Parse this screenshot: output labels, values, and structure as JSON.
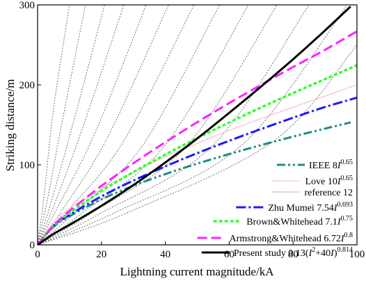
{
  "chart_data": {
    "type": "line",
    "title": "",
    "xlabel": "Lightning current magnitude/kA",
    "ylabel": "Striking distance/m",
    "xlim": [
      0,
      100
    ],
    "ylim": [
      0,
      300
    ],
    "x_ticks": [
      "0",
      "20",
      "40",
      "60",
      "80",
      "100"
    ],
    "y_ticks": [
      "0",
      "100",
      "200",
      "300"
    ],
    "grid": false,
    "legend_position": "bottom-right",
    "series": [
      {
        "name": "IEEE 8I^0.65",
        "legend": {
          "base": "IEEE 8",
          "var": "I",
          "exp": "0.65",
          "tail": ""
        },
        "color": "#1f8a87",
        "style": "dash-dot-dot",
        "x": [
          0,
          5,
          10,
          20,
          30,
          40,
          50,
          60,
          70,
          80,
          90,
          98
        ],
        "y": [
          0,
          22.4,
          35.7,
          56.9,
          73.8,
          88.4,
          101.5,
          113.5,
          124.7,
          135.3,
          145.3,
          153.0
        ]
      },
      {
        "name": "Love 10I^0.65",
        "legend": {
          "base": "Love 10",
          "var": "I",
          "exp": "0.65",
          "tail": ""
        },
        "color": "#f2b8c6",
        "style": "dotted",
        "x": [
          0,
          5,
          10,
          20,
          30,
          40,
          50,
          60,
          70,
          80,
          90,
          100
        ],
        "y": [
          0,
          28.4,
          44.7,
          70.1,
          91.0,
          110.0,
          127.0,
          143.0,
          158.0,
          172.0,
          186.0,
          200.0
        ]
      },
      {
        "name": "Zhu Mumei 7.54I^0.693",
        "legend": {
          "base": "Zhu Mumei 7.54",
          "var": "I",
          "exp": "0.693",
          "tail": ""
        },
        "color": "#1a1aff",
        "style": "dash-dot",
        "x": [
          0,
          5,
          10,
          20,
          30,
          40,
          50,
          60,
          70,
          80,
          90,
          100
        ],
        "y": [
          0,
          23.7,
          37.4,
          60.6,
          80.3,
          98.1,
          114.6,
          130.1,
          144.8,
          158.9,
          172.3,
          184.0
        ]
      },
      {
        "name": "Brown&Whitehead 7.1I^0.75",
        "legend": {
          "base": "Brown&Whitehead 7.1",
          "var": "I",
          "exp": "0.75",
          "tail": ""
        },
        "color": "#33ff33",
        "style": "dotted-thick",
        "x": [
          0,
          5,
          10,
          20,
          30,
          40,
          50,
          60,
          70,
          80,
          90,
          100
        ],
        "y": [
          0,
          23.7,
          39.9,
          67.2,
          91.0,
          112.9,
          133.5,
          153.0,
          171.7,
          189.8,
          207.2,
          224.5
        ]
      },
      {
        "name": "Armstrong&Whitehead 6.72I^0.8",
        "legend": {
          "base": "Armstrong&Whitehead 6.72",
          "var": "I",
          "exp": "0.8",
          "tail": ""
        },
        "color": "#ff22ff",
        "style": "dashed",
        "x": [
          0,
          5,
          10,
          20,
          30,
          40,
          50,
          60,
          70,
          80,
          90,
          100
        ],
        "y": [
          0,
          24.2,
          42.3,
          73.7,
          102.0,
          128.3,
          153.3,
          177.2,
          200.1,
          222.3,
          243.8,
          267.0
        ]
      },
      {
        "name": "Present study 0.13(I^2+40I)^0.814",
        "legend": {
          "base": "Present study 0.13(",
          "var": "I",
          "exp": "2",
          "tail": "+40",
          "var2": "I",
          "close": ")",
          "exp2": "0.814"
        },
        "color": "#000000",
        "style": "solid",
        "x": [
          0,
          5,
          10,
          20,
          30,
          40,
          50,
          60,
          70,
          80,
          90,
          98
        ],
        "y": [
          0,
          13.7,
          25.0,
          48.8,
          74.7,
          103.0,
          133.0,
          165.0,
          198.0,
          232.0,
          268.0,
          298.0
        ]
      }
    ],
    "reference": {
      "name": "reference 12",
      "color": "#707070",
      "style": "fine-dotted",
      "curves": [
        [
          [
            0,
            0
          ],
          [
            2,
            60
          ],
          [
            5,
            170
          ],
          [
            10,
            300
          ]
        ],
        [
          [
            0,
            0
          ],
          [
            3,
            55
          ],
          [
            8,
            160
          ],
          [
            15,
            300
          ]
        ],
        [
          [
            0,
            0
          ],
          [
            4,
            50
          ],
          [
            11,
            150
          ],
          [
            21,
            300
          ]
        ],
        [
          [
            0,
            0
          ],
          [
            5,
            48
          ],
          [
            14,
            145
          ],
          [
            27,
            300
          ]
        ],
        [
          [
            0,
            0
          ],
          [
            6,
            45
          ],
          [
            18,
            140
          ],
          [
            34,
            300
          ]
        ],
        [
          [
            0,
            0
          ],
          [
            8,
            45
          ],
          [
            22,
            135
          ],
          [
            41,
            300
          ]
        ],
        [
          [
            0,
            0
          ],
          [
            10,
            45
          ],
          [
            27,
            130
          ],
          [
            49,
            300
          ]
        ],
        [
          [
            0,
            0
          ],
          [
            12,
            42
          ],
          [
            33,
            125
          ],
          [
            57,
            300
          ]
        ],
        [
          [
            0,
            0
          ],
          [
            14,
            40
          ],
          [
            40,
            125
          ],
          [
            66,
            300
          ]
        ],
        [
          [
            0,
            0
          ],
          [
            17,
            40
          ],
          [
            47,
            125
          ],
          [
            75,
            300
          ]
        ],
        [
          [
            0,
            0
          ],
          [
            20,
            40
          ],
          [
            55,
            125
          ],
          [
            85,
            300
          ]
        ],
        [
          [
            0,
            0
          ],
          [
            24,
            40
          ],
          [
            64,
            125
          ],
          [
            97,
            300
          ]
        ],
        [
          [
            0,
            0
          ],
          [
            28,
            40
          ],
          [
            74,
            130
          ],
          [
            100,
            250
          ]
        ]
      ]
    }
  }
}
